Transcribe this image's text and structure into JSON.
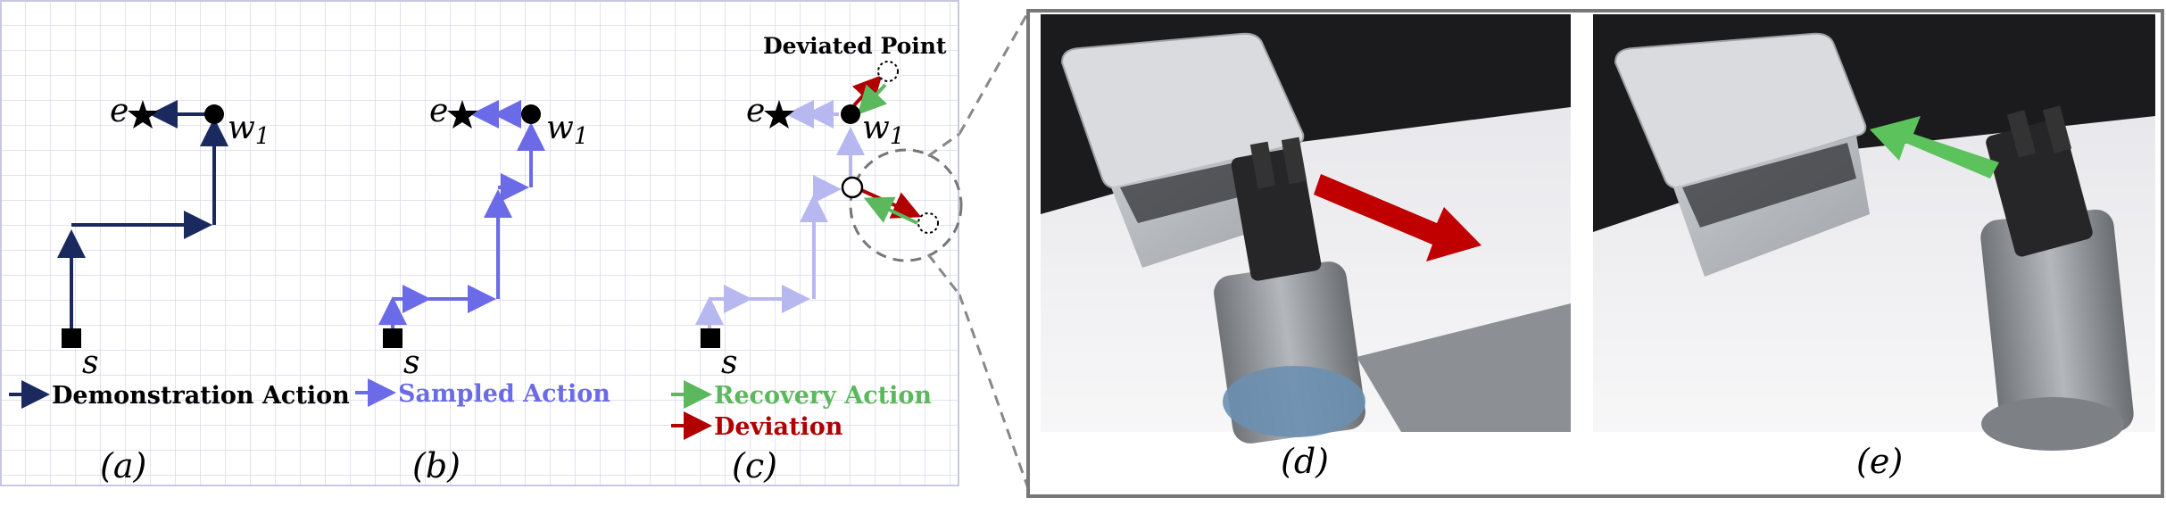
{
  "panels": {
    "a": {
      "caption": "(a)",
      "legend": "Demonstration Action",
      "labels": {
        "end": "e",
        "waypoint": "w",
        "waypoint_sub": "1",
        "start": "s"
      }
    },
    "b": {
      "caption": "(b)",
      "legend": "Sampled Action",
      "labels": {
        "end": "e",
        "waypoint": "w",
        "waypoint_sub": "1",
        "start": "s"
      }
    },
    "c": {
      "caption": "(c)",
      "legend_recovery": "Recovery Action",
      "legend_deviation": "Deviation",
      "annotation": "Deviated Point",
      "labels": {
        "end": "e",
        "waypoint": "w",
        "waypoint_sub": "1",
        "start": "s"
      }
    },
    "d": {
      "caption": "(d)"
    },
    "e": {
      "caption": "(e)"
    }
  },
  "colors": {
    "demonstration": "#1b2a5e",
    "sampled": "#6b6be8",
    "sampled_faded": "#b8b8f0",
    "recovery": "#5cb85c",
    "deviation": "#b00000",
    "grid": "#d8d8ee"
  }
}
